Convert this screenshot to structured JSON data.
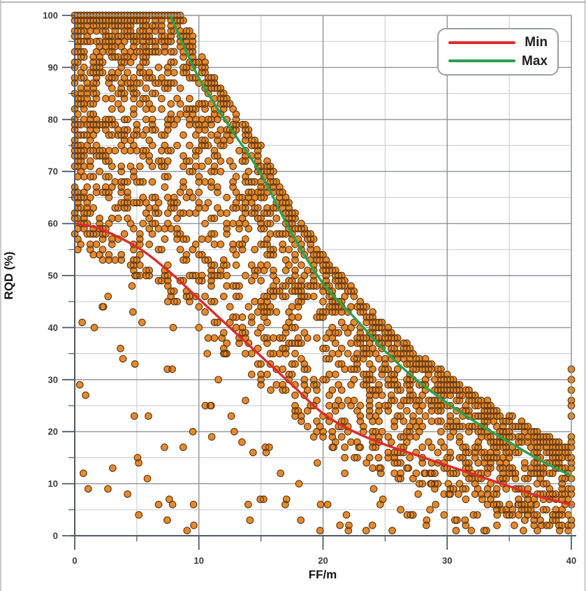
{
  "page": {
    "background": "#ffffff",
    "frame_color": "#b7bbbe"
  },
  "chart_data": {
    "type": "scatter",
    "title": "",
    "xlabel": "FF/m",
    "ylabel": "RQD (%)",
    "xlim": [
      0,
      40
    ],
    "ylim": [
      0,
      100
    ],
    "x_ticks": [
      0,
      10,
      20,
      30,
      40
    ],
    "x_minor_ticks": [
      5,
      15,
      25,
      35
    ],
    "y_ticks": [
      0,
      10,
      20,
      30,
      40,
      50,
      60,
      70,
      80,
      90,
      100
    ],
    "y_minor_ticks": [
      5,
      15,
      25,
      35,
      45,
      55,
      65,
      75,
      85,
      95
    ],
    "grid": {
      "on": true,
      "major_color": "#8f9498",
      "minor_color": "#cdd1d4"
    },
    "axis_color": "#4d5a66",
    "tick_label_color": "#3a3a3a",
    "point_style": {
      "fill": "#E68A2E",
      "stroke": "#5a340e",
      "radius": 4.8,
      "stroke_width": 1.1
    },
    "legend": {
      "position": "top-right",
      "items": [
        {
          "label": "Min",
          "color": "#dd2b2b"
        },
        {
          "label": "Max",
          "color": "#2aa14d"
        }
      ]
    },
    "series": [
      {
        "name": "Min",
        "type": "line",
        "color": "#dd2b2b",
        "width": 3.4,
        "points": [
          [
            0,
            60
          ],
          [
            2,
            59
          ],
          [
            5,
            55.5
          ],
          [
            7.5,
            51
          ],
          [
            10,
            45.5
          ],
          [
            12.5,
            40
          ],
          [
            15,
            34.5
          ],
          [
            17.5,
            29
          ],
          [
            20,
            23.5
          ],
          [
            22.5,
            20
          ],
          [
            25,
            17.5
          ],
          [
            27.5,
            15.5
          ],
          [
            30,
            13.5
          ],
          [
            32.5,
            11.5
          ],
          [
            35,
            9.5
          ],
          [
            37.5,
            7.5
          ],
          [
            40,
            6
          ]
        ]
      },
      {
        "name": "Max",
        "type": "line",
        "color": "#2aa14d",
        "width": 3.4,
        "points": [
          [
            7.7,
            100
          ],
          [
            10,
            88
          ],
          [
            12.5,
            78.5
          ],
          [
            15,
            69.5
          ],
          [
            17.5,
            58
          ],
          [
            20,
            48.5
          ],
          [
            22.5,
            42
          ],
          [
            25,
            35.5
          ],
          [
            27.5,
            30
          ],
          [
            30,
            25.5
          ],
          [
            32.5,
            21.5
          ],
          [
            35,
            18
          ],
          [
            37.5,
            14.5
          ],
          [
            40,
            11.5
          ]
        ]
      }
    ],
    "scatter": {
      "description": "Dense band of RQD(%) vs FF/m borehole data points lying mostly between the Min and Max envelope curves; RQD values quantized to integers; dense saturation at RQD 85-100 for FF 0-8; sparse low-RQD outliers below the Min curve; stacked column of points clipped at FF = 40.",
      "seed": 42,
      "groups": [
        {
          "name": "main-band",
          "count": 2600,
          "x_max": 40,
          "x_exp": 1.35,
          "x_quantum": 0.25,
          "top_slack": 5,
          "bottom_slack": 6,
          "full_top_below_ff": 8.2,
          "skew": 1.8
        },
        {
          "name": "top-row",
          "count": 130,
          "x_max": 8.3,
          "x_exp": 1.2,
          "x_quantum": 0.25,
          "rqd": 100
        },
        {
          "name": "low-outliers",
          "count": 135,
          "x_max": 40,
          "rqd_min": 1,
          "bias": 1.4
        },
        {
          "name": "right-edge",
          "count": 26,
          "ff": 40,
          "rqd_min": 1,
          "rqd_max": 32
        }
      ]
    }
  }
}
